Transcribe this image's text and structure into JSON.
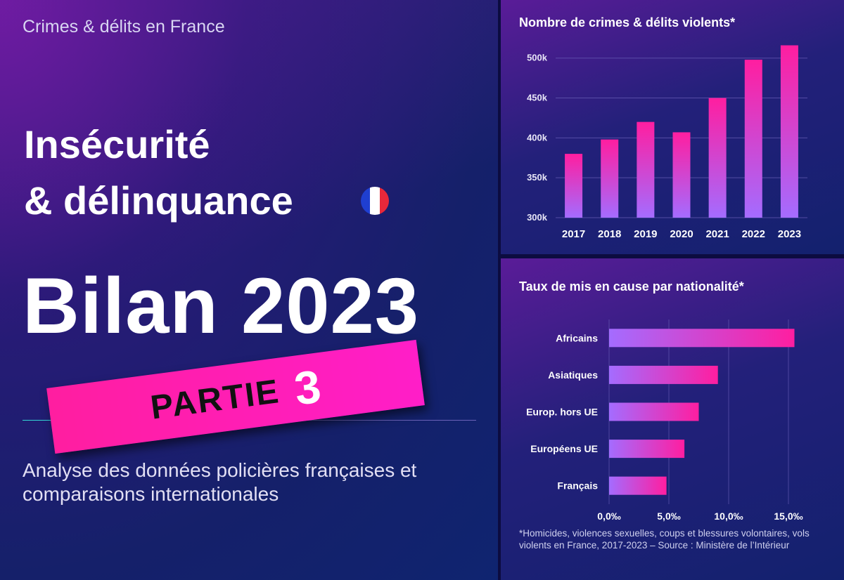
{
  "header": {
    "kicker": "Crimes & délits en France"
  },
  "hero": {
    "title_line1": "Insécurité",
    "title_line2": "& délinquance",
    "big_title": "Bilan 2023",
    "stamp_text": "PARTIE",
    "stamp_number": "3",
    "subtitle": "Analyse des données policières françaises et comparaisons internationales"
  },
  "colors": {
    "accent_pink": "#ff1ea0",
    "accent_violet": "#a46cff",
    "flag_blue": "#1f3fd1",
    "flag_white": "#ffffff",
    "flag_red": "#e8283a"
  },
  "footnote": "*Homicides, violences sexuelles, coups et blessures volontaires, vols violents en France, 2017-2023 – Source : Ministère de l’Intérieur",
  "chart_data": [
    {
      "type": "bar",
      "title": "Nombre de crimes & délits violents*",
      "categories": [
        "2017",
        "2018",
        "2019",
        "2020",
        "2021",
        "2022",
        "2023"
      ],
      "values": [
        380000,
        398000,
        420000,
        407000,
        450000,
        498000,
        516000
      ],
      "ylim": [
        300000,
        520000
      ],
      "yticks": [
        300000,
        350000,
        400000,
        450000,
        500000
      ],
      "ytick_labels": [
        "300k",
        "350k",
        "400k",
        "450k",
        "500k"
      ],
      "grid": true
    },
    {
      "type": "bar",
      "orientation": "horizontal",
      "title": "Taux de mis en cause par nationalité*",
      "categories": [
        "Africains",
        "Asiatiques",
        "Europ. hors UE",
        "Européens UE",
        "Français"
      ],
      "values": [
        15.5,
        9.1,
        7.5,
        6.3,
        4.8
      ],
      "xlim": [
        0,
        16
      ],
      "xticks": [
        0,
        5,
        10,
        15
      ],
      "xtick_labels": [
        "0,0‰",
        "5,0‰",
        "10,0‰",
        "15,0‰"
      ],
      "grid": true
    }
  ]
}
